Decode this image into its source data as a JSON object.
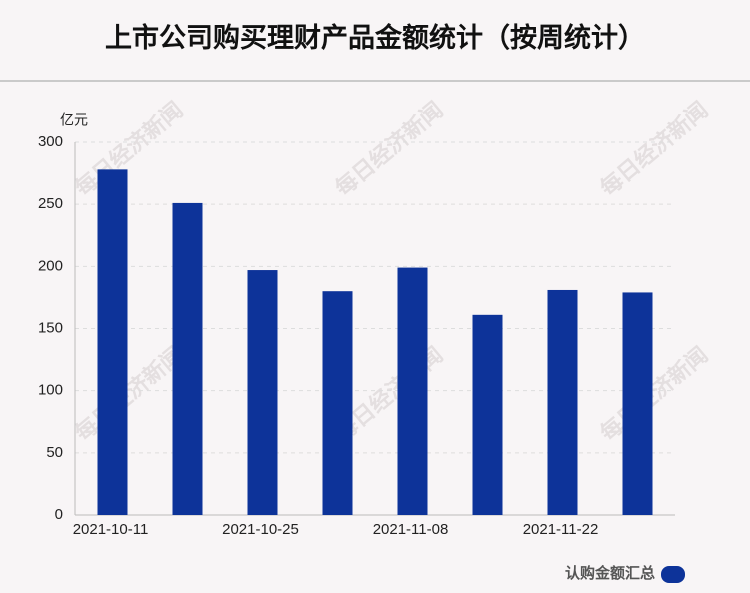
{
  "chart_data": {
    "type": "bar",
    "title": "上市公司购买理财产品金额统计（按周统计）",
    "unit": "亿元",
    "watermark": "每日经济新闻",
    "categories": [
      "2021-10-11",
      null,
      "2021-10-25",
      null,
      "2021-11-08",
      null,
      "2021-11-22",
      null
    ],
    "series": [
      {
        "name": "认购金额汇总",
        "color": "#0d3399",
        "values": [
          278,
          251,
          197,
          180,
          199,
          161,
          181,
          179
        ]
      }
    ],
    "ylim": [
      0,
      300
    ],
    "yticks": [
      0,
      50,
      100,
      150,
      200,
      250,
      300
    ],
    "grid": true,
    "legend": "bottom-right"
  }
}
